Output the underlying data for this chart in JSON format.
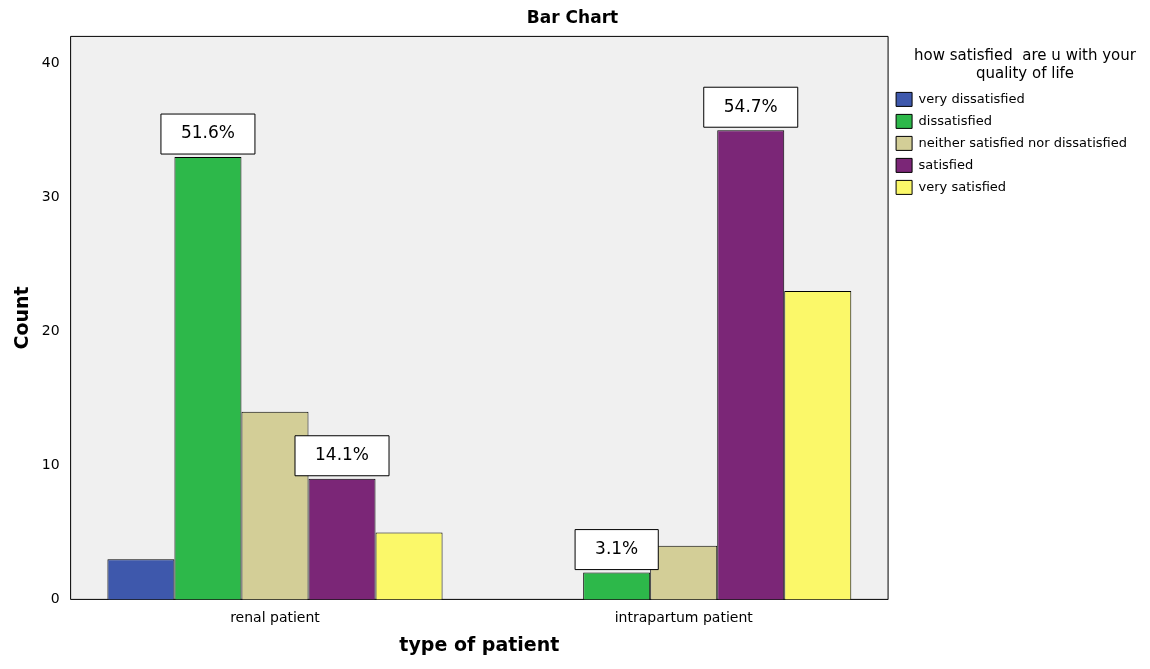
{
  "chart_data": {
    "type": "bar",
    "title": "Bar Chart",
    "xlabel": "type of patient",
    "ylabel": "Count",
    "legend_title": "how satisfied  are u with your quality of life",
    "categories": [
      "renal patient",
      "intrapartum patient"
    ],
    "series": [
      {
        "name": "very dissatisfied",
        "color": "#3e58ac",
        "values": [
          3,
          null
        ]
      },
      {
        "name": "dissatisfied",
        "color": "#2db84a",
        "values": [
          33,
          2
        ]
      },
      {
        "name": "neither satisfied nor dissatisfied",
        "color": "#d3ce97",
        "values": [
          14,
          4
        ]
      },
      {
        "name": "satisfied",
        "color": "#7b2677",
        "values": [
          9,
          35
        ]
      },
      {
        "name": "very satisfied",
        "color": "#fbf869",
        "values": [
          5,
          23
        ]
      }
    ],
    "ylim": [
      0,
      42
    ],
    "yticks": [
      0,
      10,
      20,
      30,
      40
    ],
    "grid": false,
    "legend": "right",
    "annotations": [
      "51.6%",
      "14.1%",
      "54.7%",
      "3.1%"
    ]
  }
}
